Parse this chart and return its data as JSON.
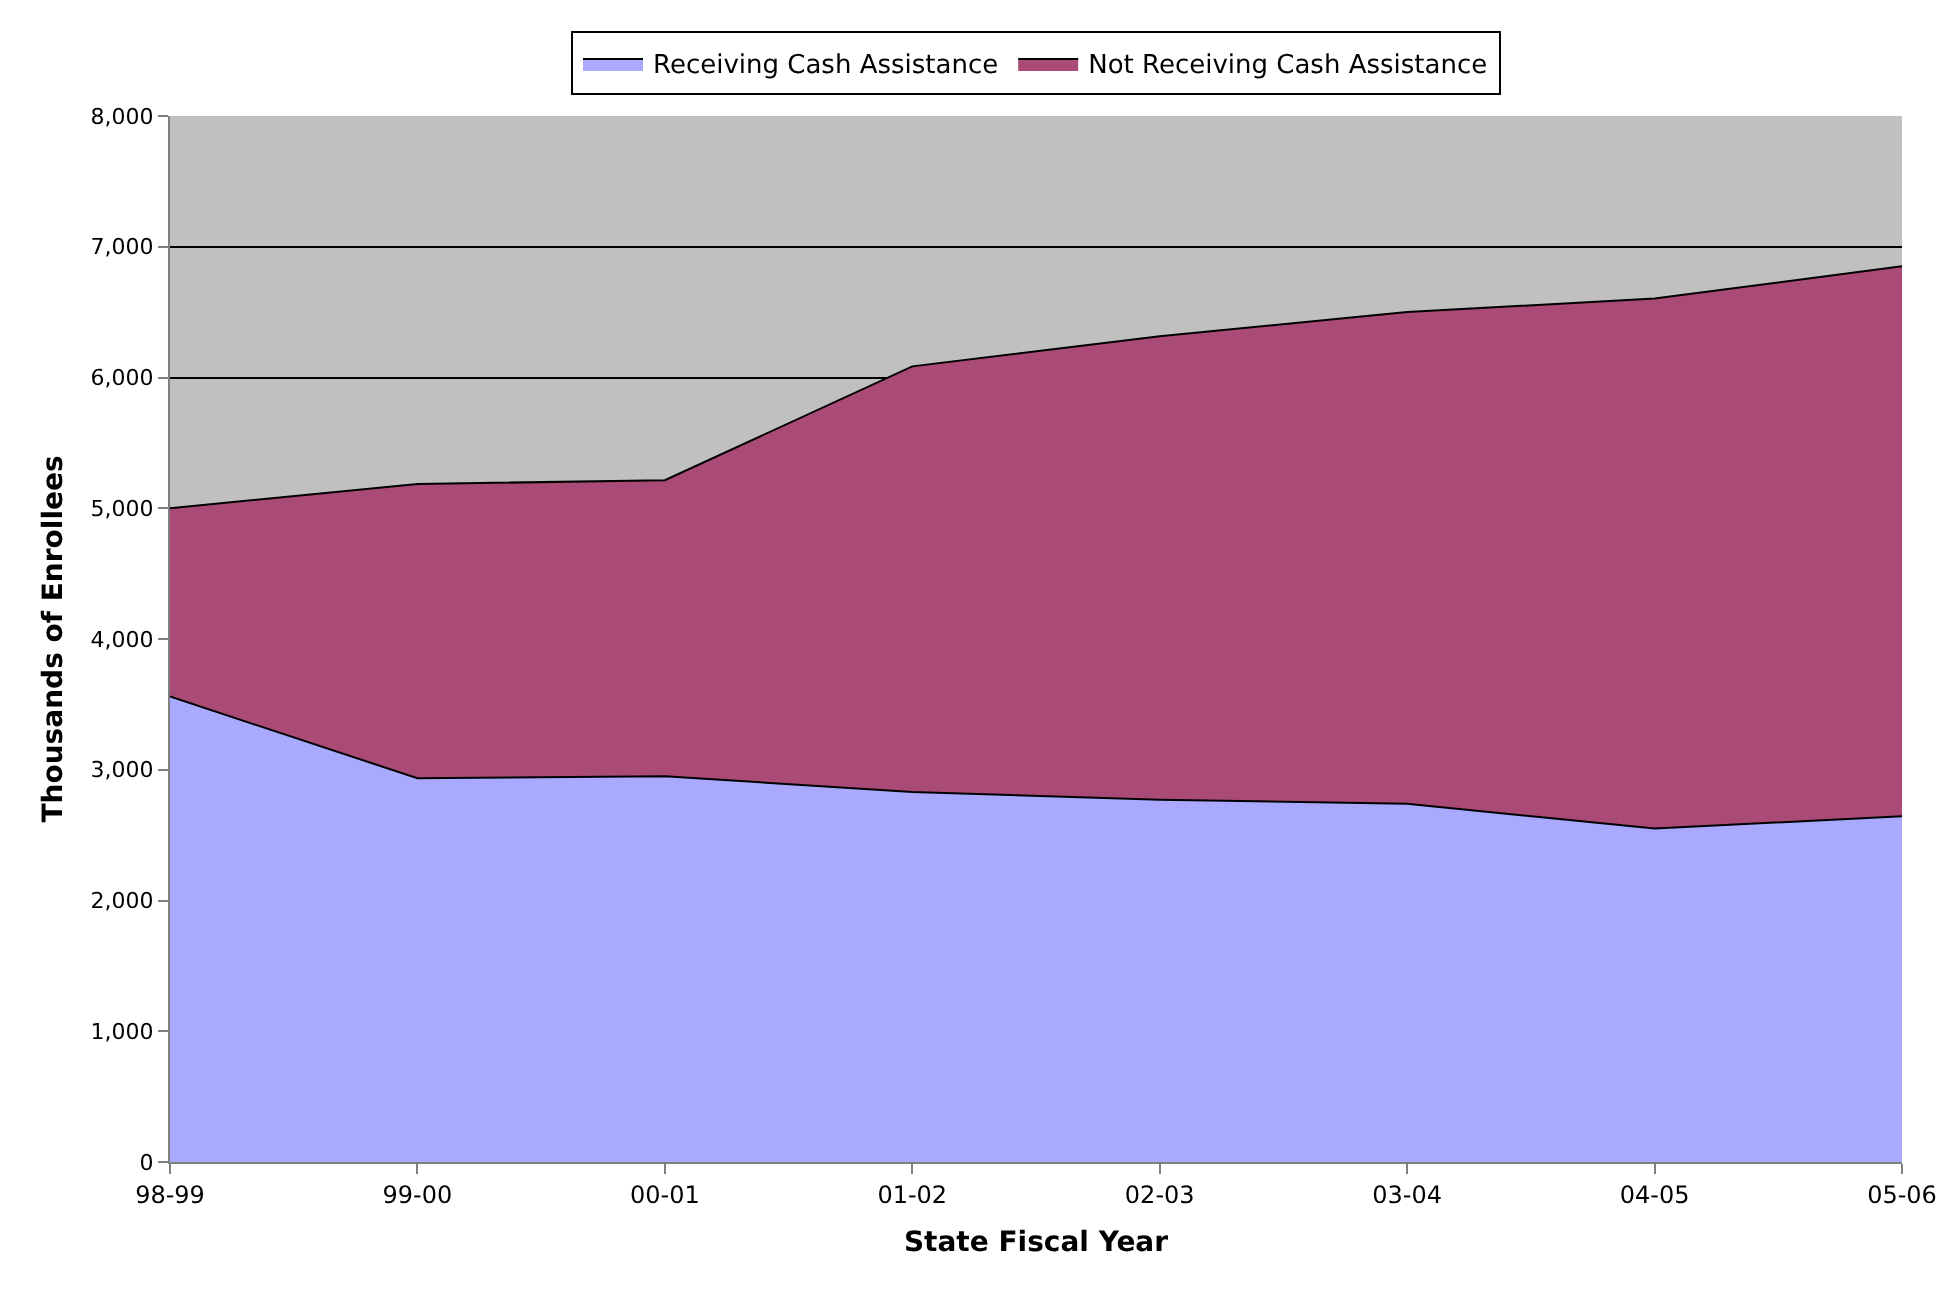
{
  "chart_data": {
    "type": "area",
    "stacked": true,
    "xlabel": "State Fiscal Year",
    "ylabel": "Thousands of Enrollees",
    "categories": [
      "98-99",
      "99-00",
      "00-01",
      "01-02",
      "02-03",
      "03-04",
      "04-05",
      "05-06"
    ],
    "series": [
      {
        "name": "Receiving Cash Assistance",
        "color": "#a9aaff",
        "values": [
          3560,
          2935,
          2950,
          2830,
          2770,
          2740,
          2550,
          2645
        ]
      },
      {
        "name": "Not Receiving Cash Assistance",
        "color": "#a94a77",
        "values": [
          1440,
          2250,
          2265,
          3255,
          3545,
          3760,
          4055,
          4205
        ]
      }
    ],
    "ylim": [
      0,
      8000
    ],
    "yticks": [
      {
        "value": 0,
        "label": "0"
      },
      {
        "value": 1000,
        "label": "1,000"
      },
      {
        "value": 2000,
        "label": "2,000"
      },
      {
        "value": 3000,
        "label": "3,000"
      },
      {
        "value": 4000,
        "label": "4,000"
      },
      {
        "value": 5000,
        "label": "5,000"
      },
      {
        "value": 6000,
        "label": "6,000"
      },
      {
        "value": 7000,
        "label": "7,000"
      },
      {
        "value": 8000,
        "label": "8,000"
      }
    ],
    "grid": "y",
    "legend": "top"
  }
}
